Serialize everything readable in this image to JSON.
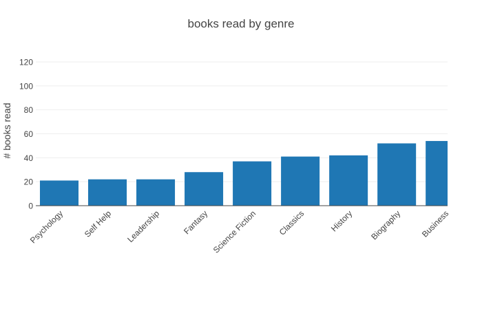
{
  "chart_data": {
    "type": "bar",
    "title": "books read by genre",
    "xlabel": "",
    "ylabel": "# books read",
    "categories": [
      "Psychology",
      "Self Help",
      "Leadership",
      "Fantasy",
      "Science Fiction",
      "Classics",
      "History",
      "Biography",
      "Business"
    ],
    "values": [
      21,
      22,
      22,
      28,
      37,
      41,
      42,
      52,
      54
    ],
    "ylim": [
      0,
      120
    ],
    "yticks": [
      0,
      20,
      40,
      60,
      80,
      100,
      120
    ],
    "grid": true,
    "colors": {
      "bar": "#1f77b4",
      "grid": "#eeeeee",
      "axis_line": "#444444",
      "text": "#444444"
    }
  }
}
